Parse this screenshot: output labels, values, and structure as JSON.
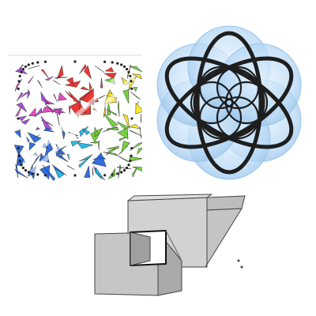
{
  "figures": [
    {
      "id": "triangle-tiling",
      "kind": "colored-triangle-mosaic",
      "palette": [
        "#e8231f",
        "#f39a1e",
        "#f7e31a",
        "#67cc2b",
        "#14b3e6",
        "#1f5fd6",
        "#a03ed0",
        "#e03bbd",
        "#6fd3d9"
      ]
    },
    {
      "id": "ring-flower",
      "kind": "interlocking-rings",
      "colors": {
        "fill": "#a8cff2",
        "stroke": "#1e1e1e"
      }
    },
    {
      "id": "gray-boxes",
      "kind": "sketched-boxes",
      "colors": {
        "face": "#c9c9c9",
        "edge": "#444444"
      }
    }
  ]
}
